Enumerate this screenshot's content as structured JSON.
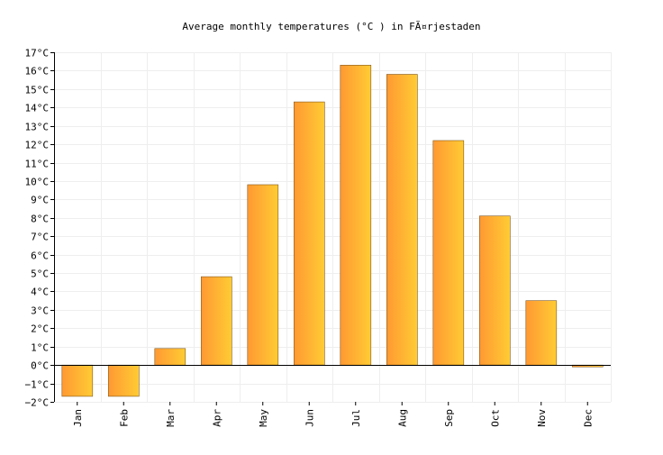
{
  "chart_data": {
    "type": "bar",
    "title": "Average monthly temperatures (°C ) in FÃ¤rjestaden",
    "xlabel": "",
    "ylabel": "",
    "categories": [
      "Jan",
      "Feb",
      "Mar",
      "Apr",
      "May",
      "Jun",
      "Jul",
      "Aug",
      "Sep",
      "Oct",
      "Nov",
      "Dec"
    ],
    "values": [
      -1.7,
      -1.7,
      0.9,
      4.8,
      9.8,
      14.3,
      16.3,
      15.8,
      12.2,
      8.1,
      3.5,
      -0.1
    ],
    "ylim": [
      -2,
      17
    ],
    "yticks": [
      -2,
      -1,
      0,
      1,
      2,
      3,
      4,
      5,
      6,
      7,
      8,
      9,
      10,
      11,
      12,
      13,
      14,
      15,
      16,
      17
    ],
    "ytick_labels": [
      "−2°C",
      "−1°C",
      "0°C",
      "1°C",
      "2°C",
      "3°C",
      "4°C",
      "5°C",
      "6°C",
      "7°C",
      "8°C",
      "9°C",
      "10°C",
      "11°C",
      "12°C",
      "13°C",
      "14°C",
      "15°C",
      "16°C",
      "17°C"
    ],
    "grid": true,
    "legend": "none",
    "bar_gradient": [
      "#ff9933",
      "#ffcc33"
    ],
    "bar_border_color": "#80581e",
    "grid_color": "#eeeeee",
    "axis_color": "#000000"
  }
}
